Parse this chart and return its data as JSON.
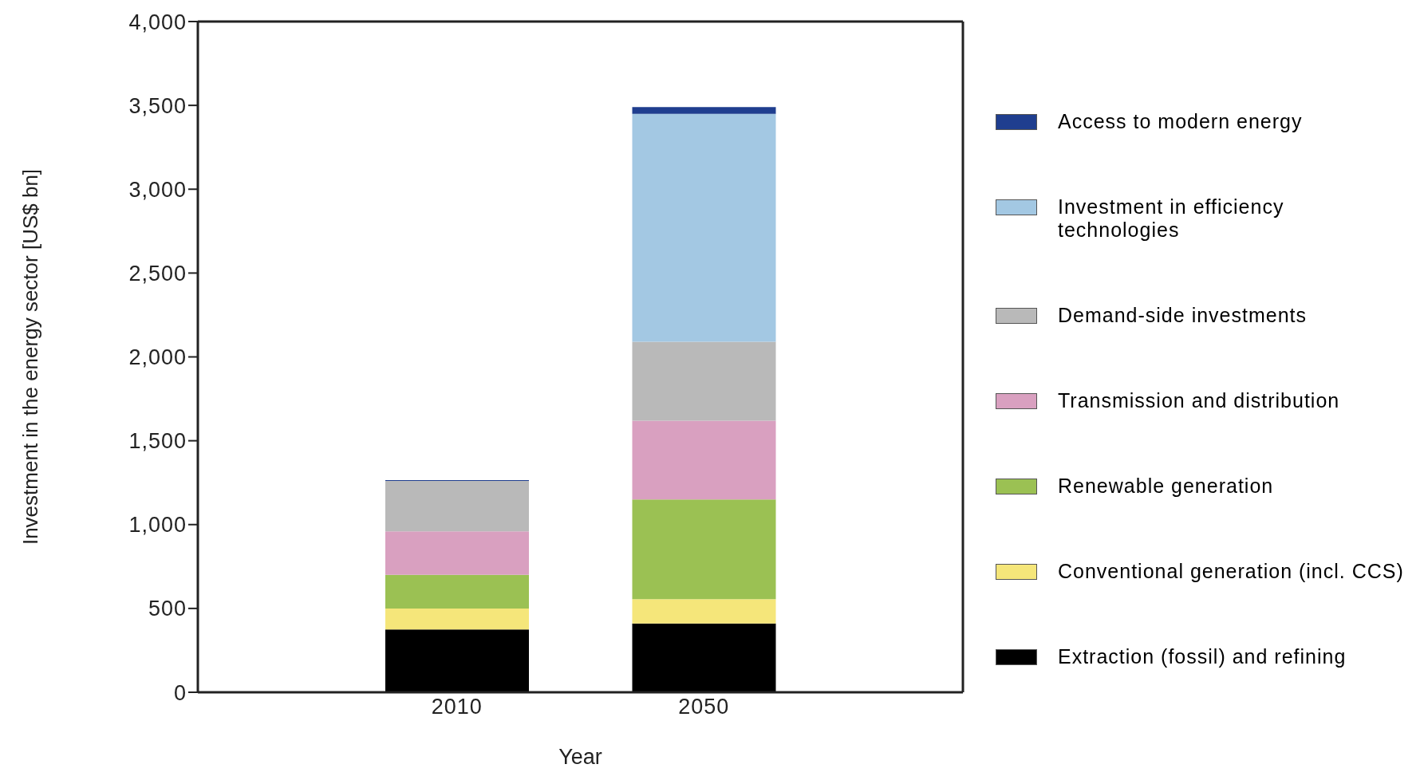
{
  "chart_data": {
    "type": "bar",
    "stacked": true,
    "xlabel": "Year",
    "ylabel": "Investment in the energy sector [US$ bn]",
    "categories": [
      "2010",
      "2050"
    ],
    "series": [
      {
        "name": "Extraction (fossil) and refining",
        "color": "#000000",
        "values": [
          375,
          410
        ]
      },
      {
        "name": "Conventional generation (incl. CCS)",
        "color": "#f5e67a",
        "values": [
          125,
          145
        ]
      },
      {
        "name": "Renewable generation",
        "color": "#9bc153",
        "values": [
          200,
          595
        ]
      },
      {
        "name": "Transmission and distribution",
        "color": "#d9a0c0",
        "values": [
          260,
          470
        ]
      },
      {
        "name": "Demand-side investments",
        "color": "#b9b9b9",
        "values": [
          300,
          470
        ]
      },
      {
        "name": "Investment in efficiency technologies",
        "color": "#a3c8e3",
        "values": [
          0,
          1360
        ]
      },
      {
        "name": "Access to modern energy",
        "color": "#1f3e8f",
        "values": [
          5,
          40
        ]
      }
    ],
    "ylim": [
      0,
      4000
    ],
    "yticks": [
      {
        "value": 0,
        "label": "0"
      },
      {
        "value": 500,
        "label": "500"
      },
      {
        "value": 1000,
        "label": "1,000"
      },
      {
        "value": 1500,
        "label": "1,500"
      },
      {
        "value": 2000,
        "label": "2,000"
      },
      {
        "value": 2500,
        "label": "2,500"
      },
      {
        "value": 3000,
        "label": "3,000"
      },
      {
        "value": 3500,
        "label": "3,500"
      },
      {
        "value": 4000,
        "label": "4,000"
      }
    ],
    "grid": false,
    "legend": "right"
  }
}
